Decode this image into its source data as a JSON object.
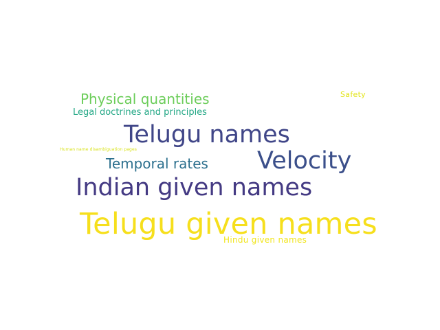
{
  "word_cloud": {
    "words": [
      {
        "id": "telugu_given_names",
        "text": "Telugu given names",
        "color": "#f6df1c"
      },
      {
        "id": "indian_given_names",
        "text": "Indian given names",
        "color": "#443a83"
      },
      {
        "id": "telugu_names",
        "text": "Telugu names",
        "color": "#404688"
      },
      {
        "id": "velocity",
        "text": "Velocity",
        "color": "#3b4f8a"
      },
      {
        "id": "temporal_rates",
        "text": "Temporal rates",
        "color": "#2d708e"
      },
      {
        "id": "physical_quantities",
        "text": "Physical quantities",
        "color": "#6ccd5a"
      },
      {
        "id": "legal_doctrines",
        "text": "Legal doctrines and principles",
        "color": "#22a785"
      },
      {
        "id": "hindu_given_names",
        "text": "Hindu given names",
        "color": "#f1e51d"
      },
      {
        "id": "safety",
        "text": "Safety",
        "color": "#e2e418"
      },
      {
        "id": "human_name_disambiguation",
        "text": "Human name disambiguation pages",
        "color": "#d8e219"
      }
    ]
  }
}
